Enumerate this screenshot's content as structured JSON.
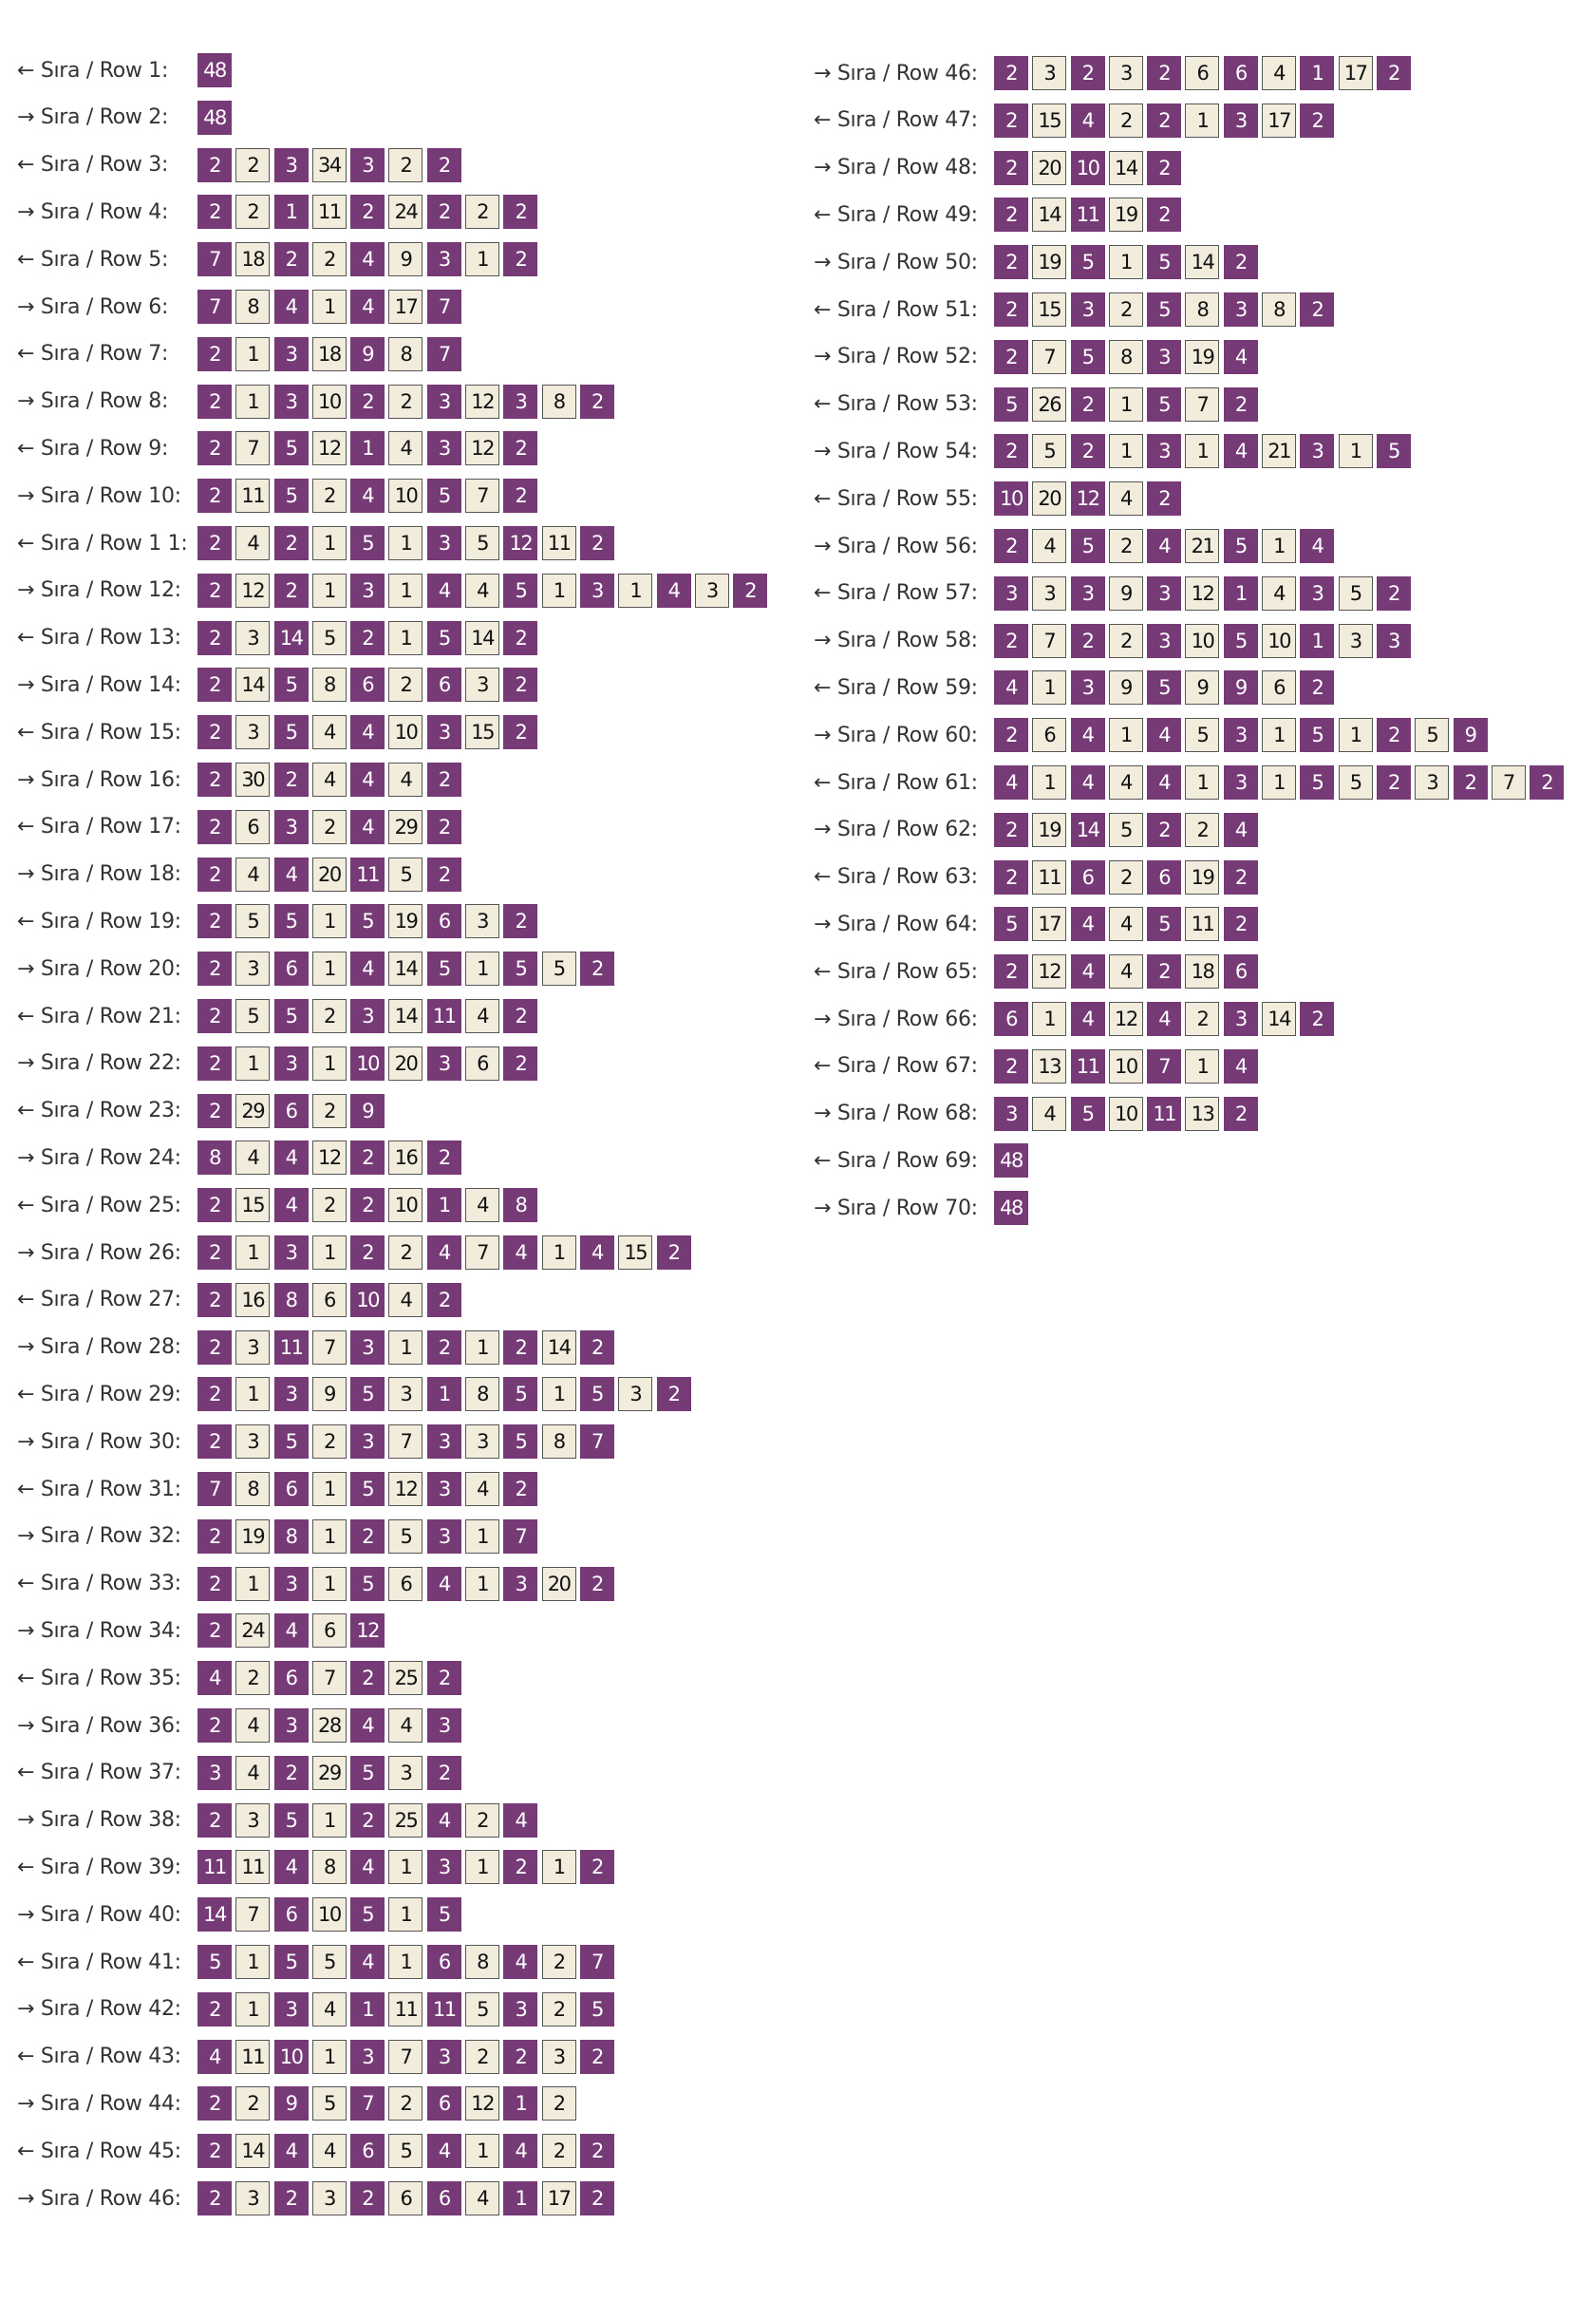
{
  "left": [
    {
      "label": "← Sıra / Row 1:",
      "cells": [
        48
      ]
    },
    {
      "label": "→ Sıra / Row 2:",
      "cells": [
        48
      ]
    },
    {
      "label": "← Sıra / Row 3:",
      "cells": [
        2,
        2,
        3,
        34,
        3,
        2,
        2
      ]
    },
    {
      "label": "→ Sıra / Row 4:",
      "cells": [
        2,
        2,
        1,
        11,
        2,
        24,
        2,
        2,
        2
      ]
    },
    {
      "label": "← Sıra / Row 5:",
      "cells": [
        7,
        18,
        2,
        2,
        4,
        9,
        3,
        1,
        2
      ]
    },
    {
      "label": "→ Sıra / Row 6:",
      "cells": [
        7,
        8,
        4,
        1,
        4,
        17,
        7
      ]
    },
    {
      "label": "← Sıra / Row 7:",
      "cells": [
        2,
        1,
        3,
        18,
        9,
        8,
        7
      ]
    },
    {
      "label": "→ Sıra / Row 8:",
      "cells": [
        2,
        1,
        3,
        10,
        2,
        2,
        3,
        12,
        3,
        8,
        2
      ]
    },
    {
      "label": "← Sıra / Row 9:",
      "cells": [
        2,
        7,
        5,
        12,
        1,
        4,
        3,
        12,
        2
      ]
    },
    {
      "label": "→ Sıra / Row 10:",
      "cells": [
        2,
        11,
        5,
        2,
        4,
        10,
        5,
        7,
        2
      ]
    },
    {
      "label": "← Sıra / Row 1 1:",
      "cells": [
        2,
        4,
        2,
        1,
        5,
        1,
        3,
        5,
        12,
        11,
        2
      ]
    },
    {
      "label": "→ Sıra / Row 12:",
      "cells": [
        2,
        12,
        2,
        1,
        3,
        1,
        4,
        4,
        5,
        1,
        3,
        1,
        4,
        3,
        2
      ]
    },
    {
      "label": "← Sıra / Row 13:",
      "cells": [
        2,
        3,
        14,
        5,
        2,
        1,
        5,
        14,
        2
      ]
    },
    {
      "label": "→ Sıra / Row 14:",
      "cells": [
        2,
        14,
        5,
        8,
        6,
        2,
        6,
        3,
        2
      ]
    },
    {
      "label": "← Sıra / Row 15:",
      "cells": [
        2,
        3,
        5,
        4,
        4,
        10,
        3,
        15,
        2
      ]
    },
    {
      "label": "→ Sıra / Row 16:",
      "cells": [
        2,
        30,
        2,
        4,
        4,
        4,
        2
      ]
    },
    {
      "label": "← Sıra / Row 17:",
      "cells": [
        2,
        6,
        3,
        2,
        4,
        29,
        2
      ]
    },
    {
      "label": "→ Sıra / Row 18:",
      "cells": [
        2,
        4,
        4,
        20,
        11,
        5,
        2
      ]
    },
    {
      "label": "← Sıra / Row 19:",
      "cells": [
        2,
        5,
        5,
        1,
        5,
        19,
        6,
        3,
        2
      ]
    },
    {
      "label": "→ Sıra / Row 20:",
      "cells": [
        2,
        3,
        6,
        1,
        4,
        14,
        5,
        1,
        5,
        5,
        2
      ]
    },
    {
      "label": "← Sıra / Row 21:",
      "cells": [
        2,
        5,
        5,
        2,
        3,
        14,
        11,
        4,
        2
      ]
    },
    {
      "label": "→ Sıra / Row 22:",
      "cells": [
        2,
        1,
        3,
        1,
        10,
        20,
        3,
        6,
        2
      ]
    },
    {
      "label": "← Sıra / Row 23:",
      "cells": [
        2,
        29,
        6,
        2,
        9
      ]
    },
    {
      "label": "→ Sıra / Row 24:",
      "cells": [
        8,
        4,
        4,
        12,
        2,
        16,
        2
      ]
    },
    {
      "label": "← Sıra / Row 25:",
      "cells": [
        2,
        15,
        4,
        2,
        2,
        10,
        1,
        4,
        8
      ]
    },
    {
      "label": "→ Sıra / Row 26:",
      "cells": [
        2,
        1,
        3,
        1,
        2,
        2,
        4,
        7,
        4,
        1,
        4,
        15,
        2
      ]
    },
    {
      "label": "← Sıra / Row 27:",
      "cells": [
        2,
        16,
        8,
        6,
        10,
        4,
        2
      ]
    },
    {
      "label": "→ Sıra / Row 28:",
      "cells": [
        2,
        3,
        11,
        7,
        3,
        1,
        2,
        1,
        2,
        14,
        2
      ]
    },
    {
      "label": "← Sıra / Row 29:",
      "cells": [
        2,
        1,
        3,
        9,
        5,
        3,
        1,
        8,
        5,
        1,
        5,
        3,
        2
      ]
    },
    {
      "label": "→ Sıra / Row 30:",
      "cells": [
        2,
        3,
        5,
        2,
        3,
        7,
        3,
        3,
        5,
        8,
        7
      ]
    },
    {
      "label": "← Sıra / Row 31:",
      "cells": [
        7,
        8,
        6,
        1,
        5,
        12,
        3,
        4,
        2
      ]
    },
    {
      "label": "→ Sıra / Row 32:",
      "cells": [
        2,
        19,
        8,
        1,
        2,
        5,
        3,
        1,
        7
      ]
    },
    {
      "label": "← Sıra / Row 33:",
      "cells": [
        2,
        1,
        3,
        1,
        5,
        6,
        4,
        1,
        3,
        20,
        2
      ]
    },
    {
      "label": "→ Sıra / Row 34:",
      "cells": [
        2,
        24,
        4,
        6,
        12
      ]
    },
    {
      "label": "← Sıra / Row 35:",
      "cells": [
        4,
        2,
        6,
        7,
        2,
        25,
        2
      ]
    },
    {
      "label": "→ Sıra / Row 36:",
      "cells": [
        2,
        4,
        3,
        28,
        4,
        4,
        3
      ]
    },
    {
      "label": "← Sıra / Row 37:",
      "cells": [
        3,
        4,
        2,
        29,
        5,
        3,
        2
      ]
    },
    {
      "label": "→ Sıra / Row 38:",
      "cells": [
        2,
        3,
        5,
        1,
        2,
        25,
        4,
        2,
        4
      ]
    },
    {
      "label": "← Sıra / Row 39:",
      "cells": [
        11,
        11,
        4,
        8,
        4,
        1,
        3,
        1,
        2,
        1,
        2
      ]
    },
    {
      "label": "→ Sıra / Row 40:",
      "cells": [
        14,
        7,
        6,
        10,
        5,
        1,
        5
      ]
    },
    {
      "label": "← Sıra / Row 41:",
      "cells": [
        5,
        1,
        5,
        5,
        4,
        1,
        6,
        8,
        4,
        2,
        7
      ]
    },
    {
      "label": "→ Sıra / Row 42:",
      "cells": [
        2,
        1,
        3,
        4,
        1,
        11,
        11,
        5,
        3,
        2,
        5
      ]
    },
    {
      "label": "← Sıra / Row 43:",
      "cells": [
        4,
        11,
        10,
        1,
        3,
        7,
        3,
        2,
        2,
        3,
        2
      ]
    },
    {
      "label": "→ Sıra / Row 44:",
      "cells": [
        2,
        2,
        9,
        5,
        7,
        2,
        6,
        12,
        1,
        2
      ]
    },
    {
      "label": "← Sıra / Row 45:",
      "cells": [
        2,
        14,
        4,
        4,
        6,
        5,
        4,
        1,
        4,
        2,
        2
      ]
    },
    {
      "label": "→ Sıra / Row 46:",
      "cells": [
        2,
        3,
        2,
        3,
        2,
        6,
        6,
        4,
        1,
        17,
        2
      ]
    }
  ],
  "right": [
    {
      "label": "→ Sıra / Row 46:",
      "cells": [
        2,
        3,
        2,
        3,
        2,
        6,
        6,
        4,
        1,
        17,
        2
      ]
    },
    {
      "label": "← Sıra / Row 47:",
      "cells": [
        2,
        15,
        4,
        2,
        2,
        1,
        3,
        17,
        2
      ]
    },
    {
      "label": "→ Sıra / Row 48:",
      "cells": [
        2,
        20,
        10,
        14,
        2
      ]
    },
    {
      "label": "← Sıra / Row 49:",
      "cells": [
        2,
        14,
        11,
        19,
        2
      ]
    },
    {
      "label": "→ Sıra / Row 50:",
      "cells": [
        2,
        19,
        5,
        1,
        5,
        14,
        2
      ]
    },
    {
      "label": "← Sıra / Row 51:",
      "cells": [
        2,
        15,
        3,
        2,
        5,
        8,
        3,
        8,
        2
      ]
    },
    {
      "label": "→ Sıra / Row 52:",
      "cells": [
        2,
        7,
        5,
        8,
        3,
        19,
        4
      ]
    },
    {
      "label": "← Sıra / Row 53:",
      "cells": [
        5,
        26,
        2,
        1,
        5,
        7,
        2
      ]
    },
    {
      "label": "→ Sıra / Row 54:",
      "cells": [
        2,
        5,
        2,
        1,
        3,
        1,
        4,
        21,
        3,
        1,
        5
      ]
    },
    {
      "label": "← Sıra / Row 55:",
      "cells": [
        10,
        20,
        12,
        4,
        2
      ]
    },
    {
      "label": "→ Sıra / Row 56:",
      "cells": [
        2,
        4,
        5,
        2,
        4,
        21,
        5,
        1,
        4
      ]
    },
    {
      "label": "← Sıra / Row 57:",
      "cells": [
        3,
        3,
        3,
        9,
        3,
        12,
        1,
        4,
        3,
        5,
        2
      ]
    },
    {
      "label": "→ Sıra / Row 58:",
      "cells": [
        2,
        7,
        2,
        2,
        3,
        10,
        5,
        10,
        1,
        3,
        3
      ]
    },
    {
      "label": "← Sıra / Row 59:",
      "cells": [
        4,
        1,
        3,
        9,
        5,
        9,
        9,
        6,
        2
      ]
    },
    {
      "label": "→ Sıra / Row 60:",
      "cells": [
        2,
        6,
        4,
        1,
        4,
        5,
        3,
        1,
        5,
        1,
        2,
        5,
        9
      ]
    },
    {
      "label": "← Sıra / Row 61:",
      "cells": [
        4,
        1,
        4,
        4,
        4,
        1,
        3,
        1,
        5,
        5,
        2,
        3,
        2,
        7,
        2
      ]
    },
    {
      "label": "→ Sıra / Row 62:",
      "cells": [
        2,
        19,
        14,
        5,
        2,
        2,
        4
      ]
    },
    {
      "label": "← Sıra / Row 63:",
      "cells": [
        2,
        11,
        6,
        2,
        6,
        19,
        2
      ]
    },
    {
      "label": "→ Sıra / Row 64:",
      "cells": [
        5,
        17,
        4,
        4,
        5,
        11,
        2
      ]
    },
    {
      "label": "← Sıra / Row 65:",
      "cells": [
        2,
        12,
        4,
        4,
        2,
        18,
        6
      ]
    },
    {
      "label": "→ Sıra / Row 66:",
      "cells": [
        6,
        1,
        4,
        12,
        4,
        2,
        3,
        14,
        2
      ]
    },
    {
      "label": "← Sıra / Row 67:",
      "cells": [
        2,
        13,
        11,
        10,
        7,
        1,
        4
      ]
    },
    {
      "label": "→ Sıra / Row 68:",
      "cells": [
        3,
        4,
        5,
        10,
        11,
        13,
        2
      ]
    },
    {
      "label": "← Sıra / Row 69:",
      "cells": [
        48
      ]
    },
    {
      "label": "→ Sıra / Row 70:",
      "cells": [
        48
      ]
    }
  ]
}
